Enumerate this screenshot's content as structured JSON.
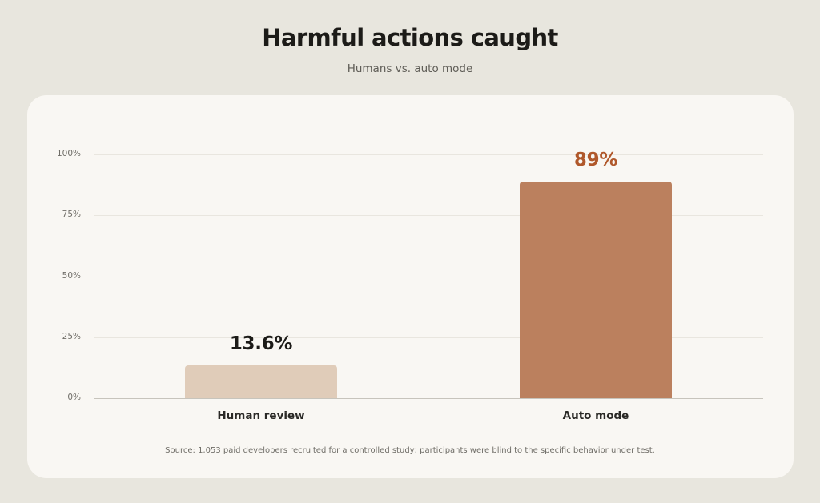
{
  "title": "Harmful actions caught",
  "subtitle": "Humans vs. auto mode",
  "source": "Source: 1,053 paid developers recruited for a controlled study; participants were blind to the specific behavior under test.",
  "chart_data": {
    "type": "bar",
    "title": "Harmful actions caught",
    "subtitle": "Humans vs. auto mode",
    "categories": [
      "Human review",
      "Auto mode"
    ],
    "values": [
      13.6,
      89
    ],
    "value_labels": [
      "13.6%",
      "89%"
    ],
    "bar_colors": [
      "#e0ccb9",
      "#bb805e"
    ],
    "value_label_colors": [
      "#1c1b18",
      "#b0582b"
    ],
    "ylim": [
      0,
      100
    ],
    "yticks": [
      0,
      25,
      50,
      75,
      100
    ],
    "ytick_labels": [
      "0%",
      "25%",
      "50%",
      "75%",
      "100%"
    ],
    "grid": true,
    "xlabel": "",
    "ylabel": ""
  },
  "colors": {
    "background": "#e8e6de",
    "card": "#f9f7f3",
    "accent": "#bb805e"
  }
}
